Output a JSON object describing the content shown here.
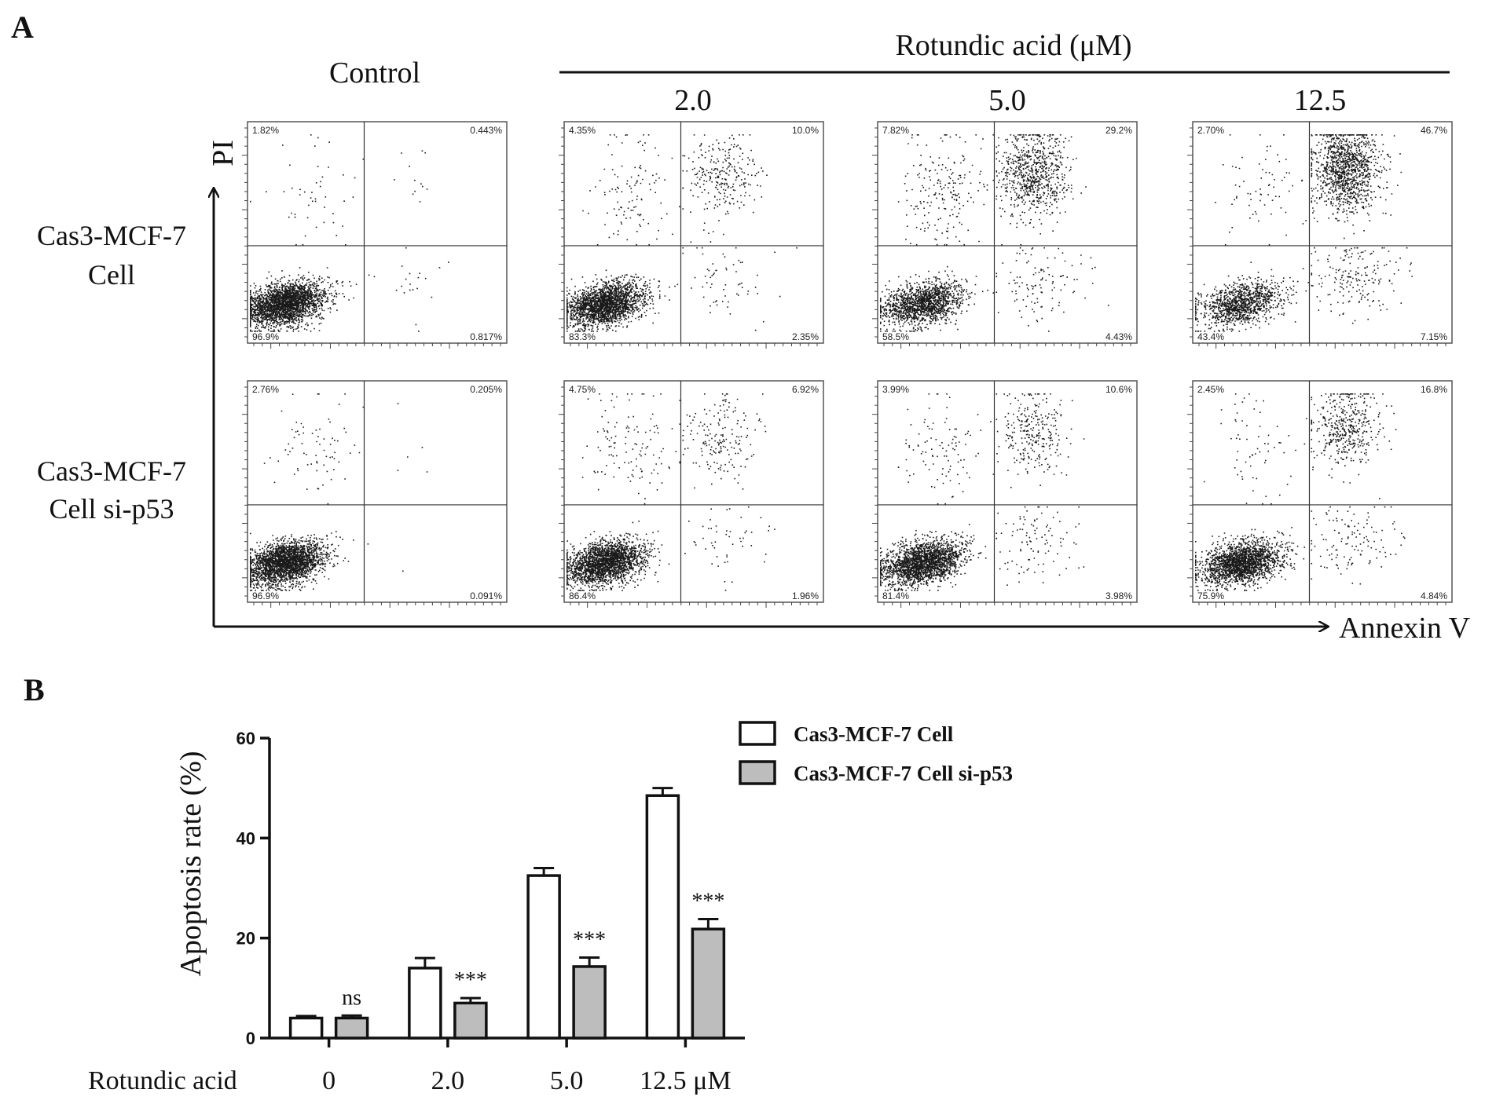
{
  "figure": {
    "panel_a_label": "A",
    "panel_b_label": "B",
    "treatment_header": "Rotundic acid (μM)",
    "control_label": "Control",
    "dose_labels": [
      "2.0",
      "5.0",
      "12.5"
    ],
    "row_labels": [
      [
        "Cas3-MCF-7",
        "Cell"
      ],
      [
        "Cas3-MCF-7",
        "Cell si-p53"
      ]
    ],
    "y_axis_label": "PI",
    "x_axis_label": "Annexin V"
  },
  "flow_panels": [
    [
      {
        "ul": "1.82%",
        "ur": "0.443%",
        "ll": "96.9%",
        "lr": "0.817%"
      },
      {
        "ul": "4.35%",
        "ur": "10.0%",
        "ll": "83.3%",
        "lr": "2.35%"
      },
      {
        "ul": "7.82%",
        "ur": "29.2%",
        "ll": "58.5%",
        "lr": "4.43%"
      },
      {
        "ul": "2.70%",
        "ur": "46.7%",
        "ll": "43.4%",
        "lr": "7.15%"
      }
    ],
    [
      {
        "ul": "2.76%",
        "ur": "0.205%",
        "ll": "96.9%",
        "lr": "0.091%"
      },
      {
        "ul": "4.75%",
        "ur": "6.92%",
        "ll": "86.4%",
        "lr": "1.96%"
      },
      {
        "ul": "3.99%",
        "ur": "10.6%",
        "ll": "81.4%",
        "lr": "3.98%"
      },
      {
        "ul": "2.45%",
        "ur": "16.8%",
        "ll": "75.9%",
        "lr": "4.84%"
      }
    ]
  ],
  "chart_data": {
    "type": "bar",
    "ylabel": "Apoptosis rate (%)",
    "xlabel": "Rotundic acid",
    "ylim": [
      0,
      60
    ],
    "yticks": [
      0,
      20,
      40,
      60
    ],
    "categories": [
      "0",
      "2.0",
      "5.0",
      "12.5 μM"
    ],
    "series": [
      {
        "name": "Cas3-MCF-7 Cell",
        "fill": "#ffffff",
        "values": [
          4,
          14,
          32.5,
          48.5
        ],
        "errors": [
          0.4,
          2.0,
          1.5,
          1.5
        ]
      },
      {
        "name": "Cas3-MCF-7 Cell si-p53",
        "fill": "#bdbdbd",
        "values": [
          4,
          7,
          14.3,
          21.8
        ],
        "errors": [
          0.5,
          1.0,
          1.8,
          2.0
        ]
      }
    ],
    "significance": [
      "ns",
      "***",
      "***",
      "***"
    ],
    "legend_position": "top-right"
  }
}
